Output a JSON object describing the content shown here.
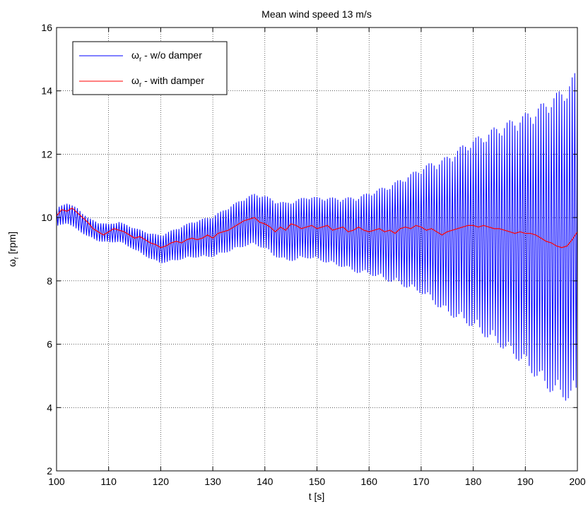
{
  "chart_data": {
    "type": "line",
    "title": "Mean wind speed 13 m/s",
    "xlabel": "t [s]",
    "ylabel_main": "ω",
    "ylabel_sub": "r",
    "ylabel_unit": " [rpm]",
    "xlim": [
      100,
      200
    ],
    "ylim": [
      2,
      16
    ],
    "xticks": [
      100,
      110,
      120,
      130,
      140,
      150,
      160,
      170,
      180,
      190,
      200
    ],
    "yticks": [
      2,
      4,
      6,
      8,
      10,
      12,
      14,
      16
    ],
    "grid": true,
    "legend_position": "top-left",
    "series": [
      {
        "name_main": "ω",
        "name_sub": "r",
        "name_rest": " - w/o damper",
        "color": "#0000ff",
        "oscillation_period_s": 0.5,
        "center_x": [
          100,
          102,
          104,
          106,
          108,
          110,
          112,
          114,
          116,
          118,
          120,
          122,
          124,
          126,
          128,
          130,
          132,
          134,
          136,
          138,
          140,
          142,
          144,
          146,
          148,
          150,
          152,
          154,
          156,
          158,
          160,
          162,
          164,
          166,
          168,
          170,
          172,
          174,
          176,
          178,
          180,
          182,
          184,
          186,
          188,
          190,
          192,
          194,
          196,
          198,
          200
        ],
        "center_y": [
          10.0,
          10.15,
          9.95,
          9.7,
          9.55,
          9.5,
          9.55,
          9.4,
          9.25,
          9.1,
          9.0,
          9.1,
          9.2,
          9.3,
          9.35,
          9.4,
          9.55,
          9.7,
          9.85,
          9.95,
          9.85,
          9.65,
          9.55,
          9.6,
          9.7,
          9.65,
          9.6,
          9.55,
          9.5,
          9.45,
          9.5,
          9.5,
          9.5,
          9.55,
          9.55,
          9.6,
          9.55,
          9.45,
          9.45,
          9.5,
          9.5,
          9.45,
          9.45,
          9.4,
          9.35,
          9.3,
          9.2,
          9.15,
          9.15,
          9.2,
          9.5
        ],
        "amplitude_x": [
          100,
          104,
          106,
          110,
          115,
          120,
          125,
          130,
          135,
          140,
          145,
          150,
          155,
          160,
          165,
          170,
          175,
          180,
          185,
          190,
          195,
          198,
          200
        ],
        "amplitude": [
          0.3,
          0.35,
          0.3,
          0.3,
          0.35,
          0.45,
          0.55,
          0.65,
          0.75,
          0.85,
          0.95,
          1.0,
          1.1,
          1.3,
          1.6,
          2.0,
          2.5,
          3.0,
          3.5,
          4.0,
          4.7,
          5.0,
          5.2
        ]
      },
      {
        "name_main": "ω",
        "name_sub": "r",
        "name_rest": " - with damper",
        "color": "#ff0000",
        "x": [
          100,
          101,
          102,
          103,
          104,
          105,
          106,
          107,
          108,
          109,
          110,
          111,
          112,
          113,
          114,
          115,
          116,
          117,
          118,
          119,
          120,
          121,
          122,
          123,
          124,
          125,
          126,
          127,
          128,
          129,
          130,
          131,
          132,
          133,
          134,
          135,
          136,
          137,
          138,
          139,
          140,
          141,
          142,
          143,
          144,
          145,
          146,
          147,
          148,
          149,
          150,
          151,
          152,
          153,
          154,
          155,
          156,
          157,
          158,
          159,
          160,
          161,
          162,
          163,
          164,
          165,
          166,
          167,
          168,
          169,
          170,
          171,
          172,
          173,
          174,
          175,
          176,
          177,
          178,
          179,
          180,
          181,
          182,
          183,
          184,
          185,
          186,
          187,
          188,
          189,
          190,
          191,
          192,
          193,
          194,
          195,
          196,
          197,
          198,
          199,
          200
        ],
        "y": [
          10.05,
          10.25,
          10.2,
          10.3,
          10.15,
          10.0,
          9.85,
          9.65,
          9.55,
          9.45,
          9.55,
          9.65,
          9.6,
          9.55,
          9.45,
          9.35,
          9.4,
          9.3,
          9.2,
          9.15,
          9.05,
          9.1,
          9.2,
          9.25,
          9.2,
          9.3,
          9.35,
          9.3,
          9.35,
          9.45,
          9.35,
          9.5,
          9.55,
          9.6,
          9.7,
          9.8,
          9.9,
          9.95,
          10.0,
          9.85,
          9.8,
          9.7,
          9.55,
          9.7,
          9.6,
          9.8,
          9.75,
          9.65,
          9.7,
          9.75,
          9.65,
          9.7,
          9.75,
          9.6,
          9.65,
          9.7,
          9.55,
          9.6,
          9.7,
          9.6,
          9.55,
          9.6,
          9.65,
          9.55,
          9.6,
          9.5,
          9.65,
          9.7,
          9.65,
          9.75,
          9.7,
          9.6,
          9.65,
          9.55,
          9.45,
          9.55,
          9.6,
          9.65,
          9.7,
          9.75,
          9.75,
          9.7,
          9.75,
          9.7,
          9.65,
          9.65,
          9.6,
          9.55,
          9.5,
          9.55,
          9.5,
          9.5,
          9.45,
          9.35,
          9.25,
          9.2,
          9.1,
          9.05,
          9.1,
          9.3,
          9.55
        ]
      }
    ]
  }
}
